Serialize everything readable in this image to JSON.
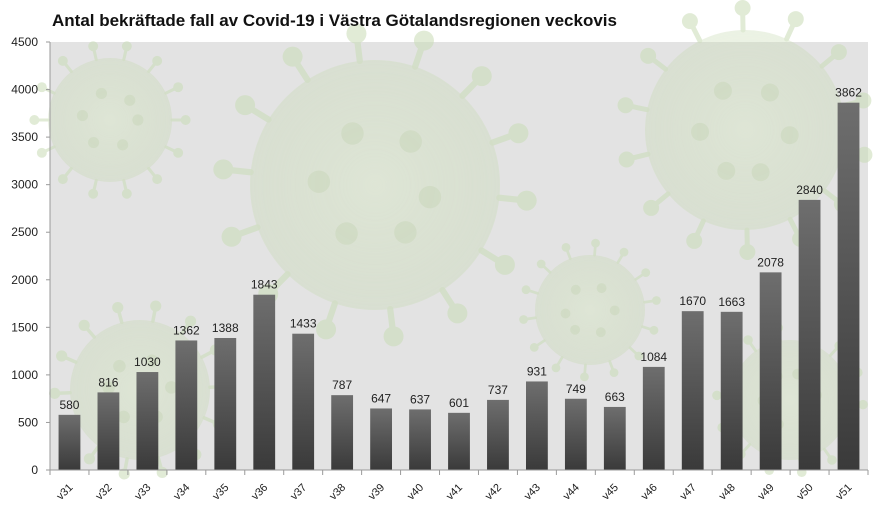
{
  "chart_data": {
    "type": "bar",
    "title": "Antal bekräftade fall av Covid-19 i Västra Götalandsregionen veckovis",
    "xlabel": "",
    "ylabel": "",
    "ylim": [
      0,
      4500
    ],
    "yticks": [
      0,
      500,
      1000,
      1500,
      2000,
      2500,
      3000,
      3500,
      4000,
      4500
    ],
    "grid": false,
    "legend": "none",
    "categories": [
      "v31",
      "v32",
      "v33",
      "v34",
      "v35",
      "v36",
      "v37",
      "v38",
      "v39",
      "v40",
      "v41",
      "v42",
      "v43",
      "v44",
      "v45",
      "v46",
      "v47",
      "v48",
      "v49",
      "v50",
      "v51"
    ],
    "values": [
      580,
      816,
      1030,
      1362,
      1388,
      1843,
      1433,
      787,
      647,
      637,
      601,
      737,
      931,
      749,
      663,
      1084,
      1670,
      1663,
      2078,
      2840,
      3862
    ],
    "bar_color_top": "#6e6e6e",
    "bar_color_bottom": "#3a3a3a",
    "plot_background": "#e3e3e3",
    "virus_tint": "#c9dcb6"
  }
}
